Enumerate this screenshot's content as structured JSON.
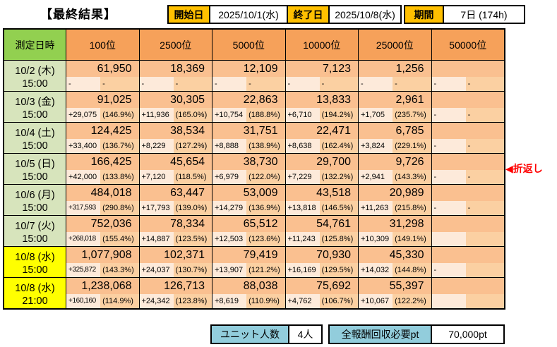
{
  "title": "【最終結果】",
  "top_bar": {
    "start_label": "開始日",
    "start_value": "2025/10/1(水)",
    "end_label": "終了日",
    "end_value": "2025/10/8(水)",
    "period_label": "期間",
    "period_value": "7日 (174h)"
  },
  "table": {
    "header": {
      "datetime": "測定日時",
      "ranks": [
        "100位",
        "2500位",
        "5000位",
        "10000位",
        "25000位",
        "50000位"
      ]
    },
    "rows": [
      {
        "date": "10/2 (木)",
        "time": "15:00",
        "highlight": false,
        "values": [
          "61,950",
          "18,369",
          "12,109",
          "7,123",
          "1,256",
          ""
        ],
        "deltas": [
          [
            "-",
            "-"
          ],
          [
            "-",
            "-"
          ],
          [
            "-",
            "-"
          ],
          [
            "-",
            "-"
          ],
          [
            "-",
            "-"
          ],
          [
            "-",
            "-"
          ]
        ]
      },
      {
        "date": "10/3 (金)",
        "time": "15:00",
        "highlight": false,
        "values": [
          "91,025",
          "30,305",
          "22,863",
          "13,833",
          "2,961",
          ""
        ],
        "deltas": [
          [
            "+29,075",
            "(146.9%)"
          ],
          [
            "+11,936",
            "(165.0%)"
          ],
          [
            "+10,754",
            "(188.8%)"
          ],
          [
            "+6,710",
            "(194.2%)"
          ],
          [
            "+1,705",
            "(235.7%)"
          ],
          [
            "-",
            "-"
          ]
        ]
      },
      {
        "date": "10/4 (土)",
        "time": "15:00",
        "highlight": false,
        "values": [
          "124,425",
          "38,534",
          "31,751",
          "22,471",
          "6,785",
          ""
        ],
        "deltas": [
          [
            "+33,400",
            "(136.7%)"
          ],
          [
            "+8,229",
            "(127.2%)"
          ],
          [
            "+8,888",
            "(138.9%)"
          ],
          [
            "+8,638",
            "(162.4%)"
          ],
          [
            "+3,824",
            "(229.1%)"
          ],
          [
            "-",
            "-"
          ]
        ]
      },
      {
        "date": "10/5 (日)",
        "time": "15:00",
        "highlight": false,
        "values": [
          "166,425",
          "45,654",
          "38,730",
          "29,700",
          "9,726",
          ""
        ],
        "deltas": [
          [
            "+42,000",
            "(133.8%)"
          ],
          [
            "+7,120",
            "(118.5%)"
          ],
          [
            "+6,979",
            "(122.0%)"
          ],
          [
            "+7,229",
            "(132.2%)"
          ],
          [
            "+2,941",
            "(143.3%)"
          ],
          [
            "-",
            "-"
          ]
        ]
      },
      {
        "date": "10/6 (月)",
        "time": "15:00",
        "highlight": false,
        "values": [
          "484,018",
          "63,447",
          "53,009",
          "43,518",
          "20,989",
          ""
        ],
        "deltas": [
          [
            "+317,593",
            "(290.8%)"
          ],
          [
            "+17,793",
            "(139.0%)"
          ],
          [
            "+14,279",
            "(136.9%)"
          ],
          [
            "+13,818",
            "(146.5%)"
          ],
          [
            "+11,263",
            "(215.8%)"
          ],
          [
            "-",
            "-"
          ]
        ]
      },
      {
        "date": "10/7 (火)",
        "time": "15:00",
        "highlight": false,
        "values": [
          "752,036",
          "78,334",
          "65,512",
          "54,761",
          "31,298",
          ""
        ],
        "deltas": [
          [
            "+268,018",
            "(155.4%)"
          ],
          [
            "+14,887",
            "(123.5%)"
          ],
          [
            "+12,503",
            "(123.6%)"
          ],
          [
            "+11,243",
            "(125.8%)"
          ],
          [
            "+10,309",
            "(149.1%)"
          ],
          [
            "",
            ""
          ]
        ]
      },
      {
        "date": "10/8 (水)",
        "time": "15:00",
        "highlight": true,
        "values": [
          "1,077,908",
          "102,371",
          "79,419",
          "70,930",
          "45,330",
          ""
        ],
        "deltas": [
          [
            "+325,872",
            "(143.3%)"
          ],
          [
            "+24,037",
            "(130.7%)"
          ],
          [
            "+13,907",
            "(121.2%)"
          ],
          [
            "+16,169",
            "(129.5%)"
          ],
          [
            "+14,032",
            "(144.8%)"
          ],
          [
            "-",
            ""
          ]
        ]
      },
      {
        "date": "10/8 (水)",
        "time": "21:00",
        "highlight": true,
        "values": [
          "1,238,068",
          "126,713",
          "88,038",
          "75,692",
          "55,397",
          ""
        ],
        "deltas": [
          [
            "+160,160",
            "(114.9%)"
          ],
          [
            "+24,342",
            "(123.8%)"
          ],
          [
            "+8,619",
            "(110.9%)"
          ],
          [
            "+4,762",
            "(106.7%)"
          ],
          [
            "+10,067",
            "(122.2%)"
          ],
          [
            "",
            ""
          ]
        ]
      }
    ]
  },
  "annotation": {
    "text": "◀折返し"
  },
  "bottom_bar": {
    "unit_label": "ユニット人数",
    "unit_value": "4人",
    "reward_label": "全報酬回収必要pt",
    "reward_value": "70,000pt"
  },
  "colors": {
    "gold": "#FFC000",
    "header_orange": "#F6A15A",
    "value_bg": "#FAC090",
    "delta_bg": "#FDEADA",
    "pct_bg": "#FBD0A2",
    "green_hdr": "#92D050",
    "green_date": "#D7E4BC",
    "yellow": "#FFFF00",
    "blue": "#92CDDC",
    "red": "#FF0000"
  }
}
